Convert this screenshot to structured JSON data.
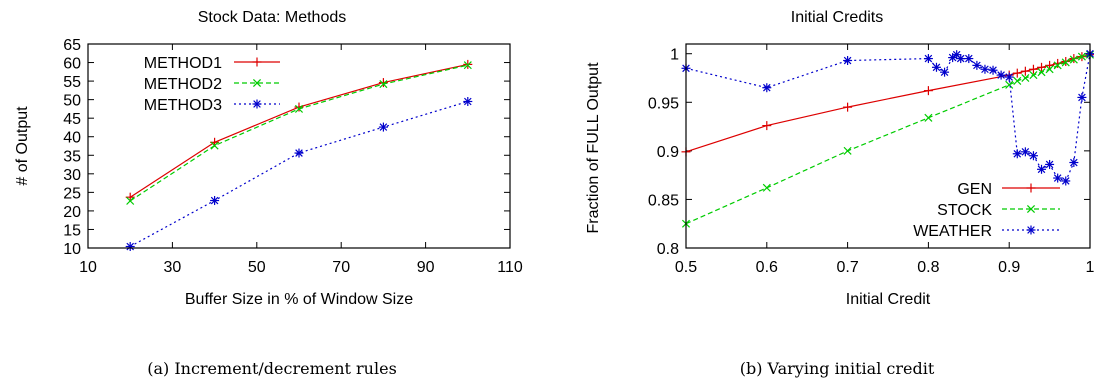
{
  "chart_data": [
    {
      "type": "line",
      "title": "Stock Data: Methods",
      "xlabel": "Buffer Size in % of Window Size",
      "ylabel": "# of Output",
      "xlim": [
        10,
        110
      ],
      "ylim": [
        10,
        65
      ],
      "x_ticks": [
        10,
        30,
        50,
        70,
        90,
        110
      ],
      "y_ticks": [
        10,
        15,
        20,
        25,
        30,
        35,
        40,
        45,
        50,
        55,
        60,
        65
      ],
      "grid": false,
      "legend_position": "top-left",
      "caption": "(a) Increment/decrement rules",
      "series": [
        {
          "name": "METHOD1",
          "color": "#dd0000",
          "dash": "solid",
          "marker": "plus",
          "x": [
            20,
            40,
            60,
            80,
            100
          ],
          "y": [
            23.7,
            38.5,
            48,
            54.6,
            59.5
          ]
        },
        {
          "name": "METHOD2",
          "color": "#00cc00",
          "dash": "dashed",
          "marker": "x",
          "x": [
            20,
            40,
            60,
            80,
            100
          ],
          "y": [
            22.7,
            37.6,
            47.5,
            54.2,
            59.3
          ]
        },
        {
          "name": "METHOD3",
          "color": "#0000cc",
          "dash": "dotted",
          "marker": "star",
          "x": [
            20,
            40,
            60,
            80,
            100
          ],
          "y": [
            10.4,
            22.8,
            35.6,
            42.6,
            49.5
          ]
        }
      ]
    },
    {
      "type": "line",
      "title": "Initial Credits",
      "xlabel": "Initial Credit",
      "ylabel": "Fraction of FULL Output",
      "xlim": [
        0.5,
        1
      ],
      "ylim": [
        0.8,
        1.01
      ],
      "x_ticks": [
        0.5,
        0.6,
        0.7,
        0.8,
        0.9,
        1
      ],
      "y_ticks": [
        0.8,
        0.85,
        0.9,
        0.95,
        1
      ],
      "grid": false,
      "legend_position": "bottom-right",
      "caption": "(b) Varying initial credit",
      "series": [
        {
          "name": "GEN",
          "color": "#dd0000",
          "dash": "solid",
          "marker": "plus",
          "x": [
            0.5,
            0.6,
            0.7,
            0.8,
            0.9,
            0.91,
            0.92,
            0.93,
            0.94,
            0.95,
            0.96,
            0.97,
            0.98,
            0.99,
            1.0
          ],
          "y": [
            0.899,
            0.926,
            0.945,
            0.962,
            0.978,
            0.98,
            0.982,
            0.984,
            0.986,
            0.988,
            0.99,
            0.992,
            0.995,
            0.997,
            0.999
          ]
        },
        {
          "name": "STOCK",
          "color": "#00cc00",
          "dash": "dashed",
          "marker": "x",
          "x": [
            0.5,
            0.6,
            0.7,
            0.8,
            0.9,
            0.91,
            0.92,
            0.93,
            0.94,
            0.95,
            0.96,
            0.97,
            0.98,
            0.99,
            1.0
          ],
          "y": [
            0.825,
            0.862,
            0.9,
            0.934,
            0.968,
            0.972,
            0.975,
            0.978,
            0.981,
            0.984,
            0.988,
            0.991,
            0.994,
            0.997,
            0.999
          ]
        },
        {
          "name": "WEATHER",
          "color": "#0000cc",
          "dash": "dotted",
          "marker": "star",
          "x": [
            0.5,
            0.6,
            0.7,
            0.8,
            0.81,
            0.82,
            0.83,
            0.835,
            0.84,
            0.85,
            0.86,
            0.87,
            0.88,
            0.89,
            0.9,
            0.91,
            0.92,
            0.93,
            0.94,
            0.95,
            0.96,
            0.97,
            0.98,
            0.99,
            1.0
          ],
          "y": [
            0.985,
            0.965,
            0.993,
            0.995,
            0.986,
            0.981,
            0.996,
            0.999,
            0.995,
            0.995,
            0.988,
            0.984,
            0.983,
            0.978,
            0.976,
            0.897,
            0.899,
            0.895,
            0.881,
            0.886,
            0.872,
            0.869,
            0.888,
            0.955,
            1.0
          ]
        }
      ]
    }
  ]
}
